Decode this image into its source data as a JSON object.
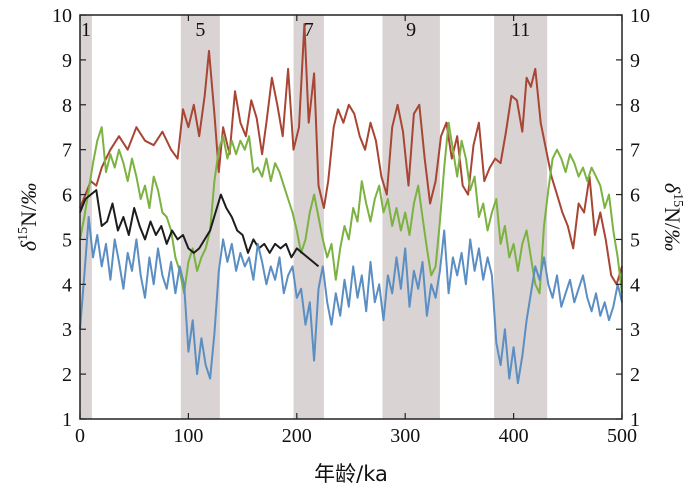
{
  "chart_data": {
    "type": "line",
    "title": "",
    "xlabel": "年龄/ka",
    "ylabel_left": "δ15N/‰",
    "ylabel_right": "δ15N/‰",
    "xlim": [
      0,
      500
    ],
    "ylim": [
      1,
      10
    ],
    "x_ticks": [
      0,
      100,
      200,
      300,
      400,
      500
    ],
    "x_tick_labels": [
      "0",
      "100",
      "200",
      "300",
      "400",
      "500"
    ],
    "y_ticks": [
      1,
      2,
      3,
      4,
      5,
      6,
      7,
      8,
      9,
      10
    ],
    "y_tick_labels": [
      "1",
      "2",
      "3",
      "4",
      "5",
      "6",
      "7",
      "8",
      "9",
      "10"
    ],
    "shaded_intervals": [
      {
        "label": "1",
        "start": 0,
        "end": 11
      },
      {
        "label": "5",
        "start": 93,
        "end": 129
      },
      {
        "label": "7",
        "start": 197,
        "end": 225
      },
      {
        "label": "9",
        "start": 279,
        "end": 332
      },
      {
        "label": "11",
        "start": 382,
        "end": 431
      }
    ],
    "band_color": "#d9d3d3",
    "series": [
      {
        "name": "red",
        "color": "#a84534",
        "x": [
          0,
          5,
          10,
          15,
          20,
          28,
          36,
          44,
          52,
          60,
          68,
          76,
          84,
          90,
          95,
          100,
          105,
          110,
          115,
          119,
          124,
          128,
          132,
          138,
          143,
          148,
          153,
          158,
          163,
          168,
          172,
          177,
          182,
          187,
          192,
          197,
          202,
          207,
          211,
          216,
          220,
          225,
          229,
          234,
          238,
          243,
          248,
          253,
          258,
          263,
          268,
          273,
          278,
          283,
          288,
          293,
          298,
          303,
          308,
          313,
          318,
          323,
          328,
          333,
          338,
          343,
          348,
          353,
          358,
          363,
          368,
          373,
          378,
          383,
          388,
          393,
          398,
          403,
          408,
          412,
          416,
          420,
          425,
          430,
          435,
          440,
          445,
          450,
          455,
          460,
          465,
          470,
          475,
          480,
          485,
          490,
          495,
          500
        ],
        "values": [
          5.7,
          6.0,
          6.3,
          6.2,
          6.6,
          7.0,
          7.3,
          7.0,
          7.5,
          7.2,
          7.1,
          7.4,
          7.0,
          6.8,
          7.9,
          7.5,
          8.0,
          7.3,
          8.2,
          9.2,
          7.8,
          6.5,
          7.5,
          6.9,
          8.3,
          7.6,
          7.3,
          8.1,
          7.7,
          6.9,
          7.6,
          8.6,
          8.0,
          7.3,
          8.8,
          7.0,
          7.5,
          9.8,
          7.6,
          8.7,
          6.2,
          5.7,
          6.3,
          7.5,
          7.9,
          7.6,
          8.0,
          7.8,
          7.3,
          7.0,
          7.6,
          7.2,
          6.4,
          6.0,
          7.5,
          8.0,
          7.4,
          6.2,
          7.8,
          8.0,
          6.8,
          5.8,
          6.3,
          7.3,
          7.6,
          6.8,
          7.3,
          6.2,
          6.0,
          7.1,
          7.6,
          6.3,
          6.6,
          6.8,
          6.7,
          7.4,
          8.2,
          8.1,
          7.4,
          8.6,
          8.4,
          8.8,
          7.6,
          7.0,
          6.4,
          6.0,
          5.6,
          5.3,
          4.8,
          5.8,
          5.6,
          6.4,
          5.1,
          5.6,
          5.0,
          4.2,
          4.0,
          4.4
        ]
      },
      {
        "name": "green",
        "color": "#7bb241",
        "x": [
          0,
          4,
          8,
          12,
          16,
          20,
          24,
          28,
          32,
          36,
          40,
          44,
          48,
          52,
          56,
          60,
          64,
          68,
          72,
          76,
          80,
          84,
          88,
          92,
          96,
          100,
          104,
          108,
          112,
          116,
          120,
          124,
          128,
          132,
          136,
          140,
          144,
          148,
          152,
          156,
          160,
          164,
          168,
          172,
          176,
          180,
          184,
          188,
          192,
          196,
          200,
          204,
          208,
          212,
          216,
          220,
          224,
          228,
          232,
          236,
          240,
          244,
          248,
          252,
          256,
          260,
          264,
          268,
          272,
          276,
          280,
          284,
          288,
          292,
          296,
          300,
          304,
          308,
          312,
          316,
          320,
          324,
          328,
          332,
          336,
          340,
          344,
          348,
          352,
          356,
          360,
          364,
          368,
          372,
          376,
          380,
          384,
          388,
          392,
          396,
          400,
          404,
          408,
          412,
          416,
          420,
          424,
          428,
          432,
          436,
          440,
          444,
          448,
          452,
          456,
          460,
          464,
          468,
          472,
          476,
          480,
          484,
          488,
          492,
          496,
          500
        ],
        "values": [
          5.0,
          5.5,
          6.1,
          6.7,
          7.2,
          7.5,
          6.5,
          6.9,
          6.6,
          7.0,
          6.7,
          6.3,
          6.8,
          6.4,
          5.9,
          6.2,
          5.7,
          6.4,
          6.1,
          5.6,
          5.5,
          5.2,
          4.6,
          4.3,
          3.8,
          4.5,
          4.8,
          4.3,
          4.6,
          4.8,
          5.2,
          6.3,
          7.0,
          7.3,
          6.8,
          7.2,
          6.9,
          7.2,
          7.0,
          7.3,
          6.5,
          6.6,
          6.4,
          6.8,
          6.3,
          6.7,
          6.5,
          6.2,
          5.9,
          5.6,
          5.2,
          4.7,
          5.0,
          5.6,
          6.0,
          5.5,
          5.0,
          4.6,
          4.9,
          4.1,
          4.8,
          5.3,
          5.0,
          5.7,
          5.4,
          6.3,
          5.8,
          5.4,
          5.9,
          6.2,
          5.6,
          5.9,
          5.3,
          5.7,
          5.2,
          5.6,
          5.1,
          5.8,
          6.2,
          5.5,
          4.8,
          4.2,
          4.4,
          5.4,
          6.6,
          7.6,
          7.0,
          6.4,
          7.2,
          6.8,
          6.1,
          6.4,
          5.5,
          5.8,
          5.2,
          5.6,
          5.9,
          4.9,
          5.3,
          4.6,
          4.9,
          4.3,
          4.9,
          5.2,
          4.6,
          4.0,
          3.8,
          5.3,
          6.1,
          6.8,
          7.0,
          6.8,
          6.5,
          6.9,
          6.7,
          6.4,
          6.6,
          6.3,
          6.6,
          6.4,
          6.2,
          5.7,
          6.0,
          5.2,
          4.6,
          3.8
        ]
      },
      {
        "name": "black",
        "color": "#1c1c1c",
        "x": [
          0,
          5,
          10,
          15,
          20,
          25,
          30,
          35,
          40,
          45,
          50,
          55,
          60,
          65,
          70,
          75,
          80,
          85,
          90,
          95,
          100,
          105,
          110,
          115,
          120,
          125,
          130,
          135,
          140,
          145,
          150,
          155,
          160,
          165,
          170,
          175,
          180,
          185,
          190,
          195,
          200,
          205,
          210,
          215,
          220
        ],
        "values": [
          5.6,
          5.9,
          6.0,
          6.1,
          5.3,
          5.4,
          5.8,
          5.2,
          5.5,
          5.1,
          5.7,
          5.3,
          5.0,
          5.4,
          5.1,
          5.3,
          4.9,
          5.2,
          5.0,
          5.1,
          4.8,
          4.7,
          4.8,
          5.0,
          5.2,
          5.6,
          6.0,
          5.7,
          5.5,
          5.2,
          5.1,
          4.7,
          5.0,
          4.8,
          4.9,
          4.7,
          4.9,
          4.8,
          4.9,
          4.6,
          4.8,
          4.7,
          4.6,
          4.5,
          4.4
        ]
      },
      {
        "name": "blue",
        "color": "#5b8ec2",
        "x": [
          0,
          4,
          8,
          12,
          16,
          20,
          24,
          28,
          32,
          36,
          40,
          44,
          48,
          52,
          56,
          60,
          64,
          68,
          72,
          76,
          80,
          84,
          88,
          92,
          96,
          100,
          104,
          108,
          112,
          116,
          120,
          124,
          128,
          132,
          136,
          140,
          144,
          148,
          152,
          156,
          160,
          164,
          168,
          172,
          176,
          180,
          184,
          188,
          192,
          196,
          200,
          204,
          208,
          212,
          216,
          220,
          224,
          228,
          232,
          236,
          240,
          244,
          248,
          252,
          256,
          260,
          264,
          268,
          272,
          276,
          280,
          284,
          288,
          292,
          296,
          300,
          304,
          308,
          312,
          316,
          320,
          324,
          328,
          332,
          336,
          340,
          344,
          348,
          352,
          356,
          360,
          364,
          368,
          372,
          376,
          380,
          384,
          388,
          392,
          396,
          400,
          404,
          408,
          412,
          416,
          420,
          424,
          428,
          432,
          436,
          440,
          444,
          448,
          452,
          456,
          460,
          464,
          468,
          472,
          476,
          480,
          484,
          488,
          492,
          496,
          500
        ],
        "values": [
          3.0,
          4.2,
          5.5,
          4.6,
          5.1,
          4.4,
          4.9,
          4.1,
          5.0,
          4.5,
          3.9,
          4.7,
          4.3,
          5.0,
          4.2,
          3.7,
          4.6,
          4.0,
          4.8,
          4.2,
          3.9,
          4.5,
          3.8,
          4.4,
          4.0,
          2.5,
          3.2,
          2.0,
          2.8,
          2.2,
          1.9,
          2.9,
          4.3,
          5.0,
          4.5,
          4.9,
          4.3,
          4.7,
          4.4,
          4.6,
          4.1,
          4.9,
          4.5,
          4.0,
          4.4,
          4.1,
          4.6,
          3.8,
          4.2,
          4.4,
          3.7,
          3.9,
          3.1,
          3.6,
          2.3,
          3.9,
          4.4,
          3.6,
          3.1,
          3.8,
          3.3,
          4.1,
          3.5,
          4.4,
          3.7,
          4.2,
          3.4,
          4.5,
          3.6,
          4.0,
          3.2,
          4.2,
          3.8,
          4.6,
          3.9,
          4.8,
          3.5,
          4.3,
          3.9,
          4.5,
          3.3,
          4.0,
          3.7,
          4.3,
          5.2,
          3.8,
          4.6,
          4.2,
          4.7,
          4.0,
          5.0,
          4.3,
          4.8,
          4.1,
          4.6,
          4.2,
          2.7,
          2.2,
          3.0,
          1.9,
          2.6,
          1.8,
          2.4,
          3.2,
          3.8,
          4.4,
          4.1,
          4.6,
          4.0,
          3.7,
          4.2,
          3.5,
          3.8,
          4.1,
          3.6,
          3.9,
          4.2,
          3.7,
          3.4,
          3.8,
          3.3,
          3.6,
          3.2,
          3.5,
          4.0,
          3.6
        ]
      }
    ]
  }
}
